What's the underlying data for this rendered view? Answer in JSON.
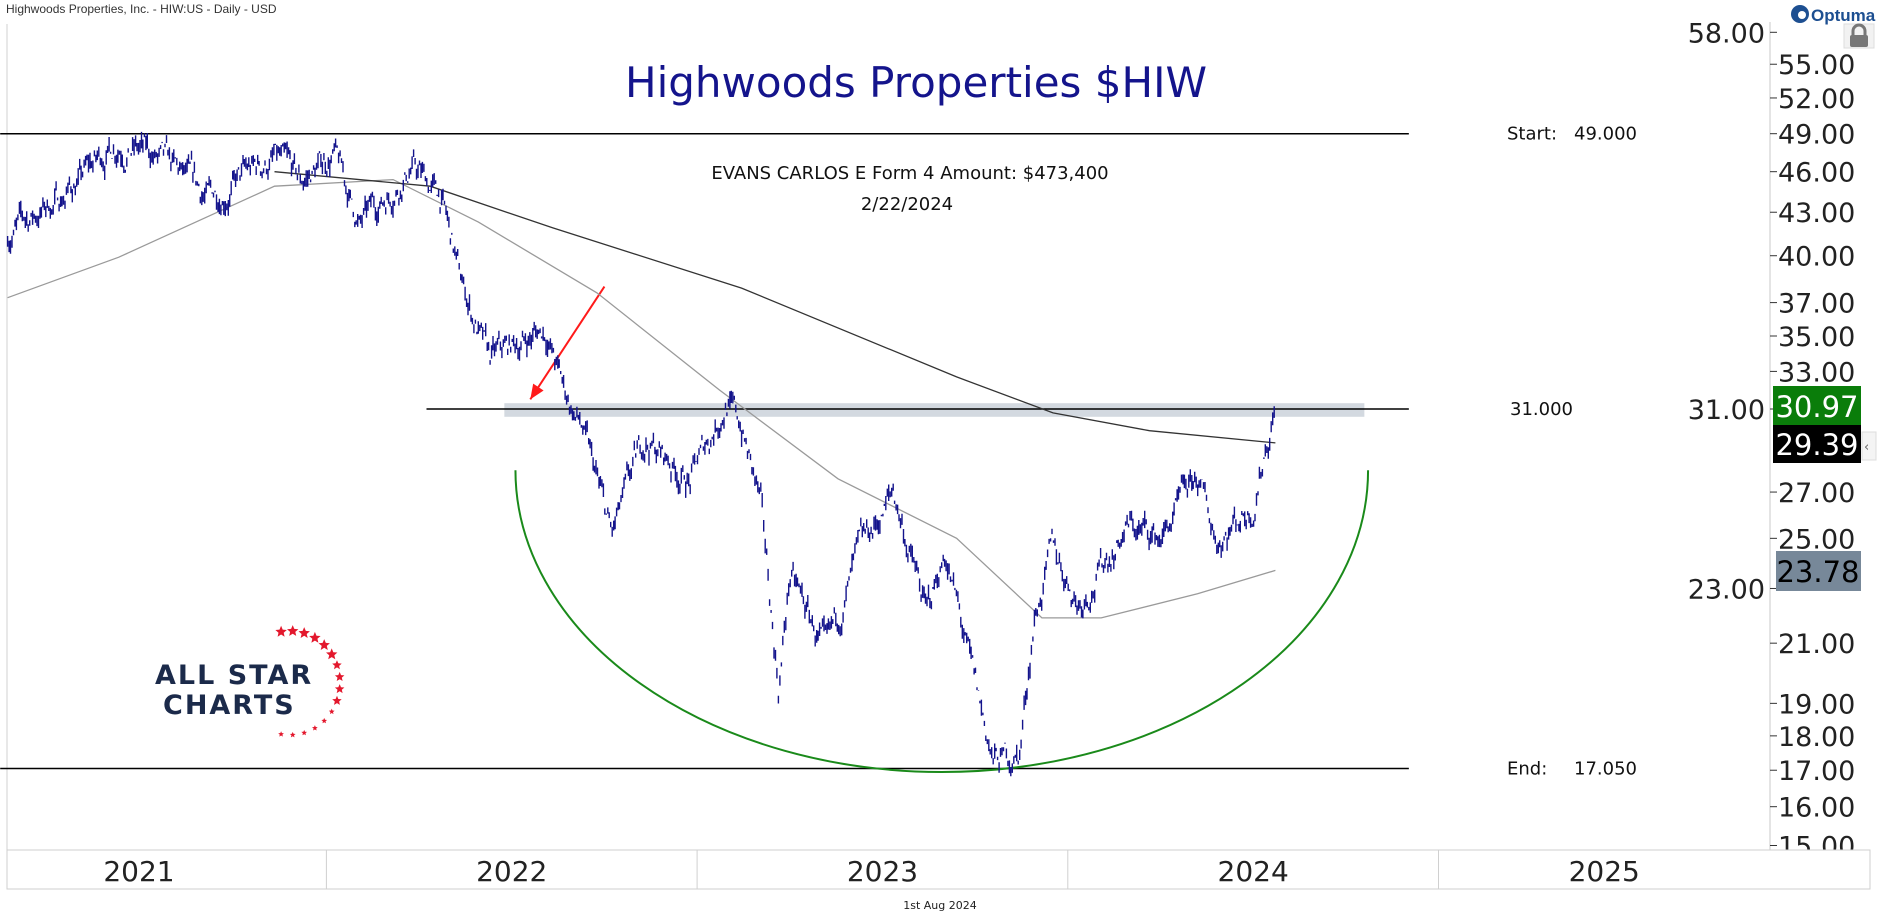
{
  "header": {
    "instrument": "Highwoods Properties, Inc. - HIW:US - Daily - USD",
    "brand": "Optuma"
  },
  "footer": {
    "date": "1st Aug 2024"
  },
  "logo": {
    "line1": "ALL STAR",
    "line2": "CHARTS"
  },
  "colors": {
    "price": "#14148c",
    "title": "#14148c",
    "ma_long": "#333333",
    "ma_short": "#9a9a9a",
    "arc": "#1a8a1a",
    "arrow": "#ff1a1a",
    "band": "#c8d0d8",
    "last_price": "#0a7d0a",
    "ma_long_label": "#000000",
    "ma_short_label": "#778899"
  },
  "chart_data": {
    "type": "line",
    "title": "Highwoods Properties $HIW",
    "xlabel": "",
    "ylabel": "",
    "scale": "log",
    "ylim": [
      15,
      58
    ],
    "xlim": [
      2021.0,
      2025.6
    ],
    "y_ticks": [
      "58.00",
      "55.00",
      "52.00",
      "49.00",
      "46.00",
      "43.00",
      "40.00",
      "37.00",
      "35.00",
      "33.00",
      "31.00",
      "27.00",
      "25.00",
      "23.00",
      "21.00",
      "19.00",
      "18.00",
      "17.00",
      "16.00",
      "15.00"
    ],
    "x_ticks": [
      {
        "label": "2021",
        "value": 2021.0
      },
      {
        "label": "2022",
        "value": 2022.0
      },
      {
        "label": "2023",
        "value": 2023.0
      },
      {
        "label": "2024",
        "value": 2024.0
      },
      {
        "label": "2025",
        "value": 2025.0
      }
    ],
    "series": [
      {
        "name": "HIW price",
        "type": "ohlc-approx",
        "points": [
          [
            2021.14,
            41.5
          ],
          [
            2021.28,
            44
          ],
          [
            2021.44,
            48.5
          ],
          [
            2021.54,
            47
          ],
          [
            2021.68,
            44
          ],
          [
            2021.86,
            47
          ],
          [
            2021.93,
            45
          ],
          [
            2022.02,
            47.5
          ],
          [
            2022.09,
            42
          ],
          [
            2022.23,
            46.5
          ],
          [
            2022.31,
            44
          ],
          [
            2022.36,
            38.5
          ],
          [
            2022.44,
            33.5
          ],
          [
            2022.59,
            35.5
          ],
          [
            2022.64,
            32
          ],
          [
            2022.69,
            30
          ],
          [
            2022.77,
            25
          ],
          [
            2022.86,
            29.5
          ],
          [
            2022.98,
            27.5
          ],
          [
            2023.08,
            31.5
          ],
          [
            2023.12,
            30
          ],
          [
            2023.17,
            26.5
          ],
          [
            2023.22,
            19.5
          ],
          [
            2023.25,
            23.5
          ],
          [
            2023.35,
            20.5
          ],
          [
            2023.43,
            24
          ],
          [
            2023.53,
            27
          ],
          [
            2023.62,
            22
          ],
          [
            2023.67,
            24.5
          ],
          [
            2023.74,
            20
          ],
          [
            2023.8,
            17.2
          ],
          [
            2023.87,
            17.5
          ],
          [
            2023.91,
            22
          ],
          [
            2023.96,
            24.5
          ],
          [
            2024.03,
            22.5
          ],
          [
            2024.16,
            25.5
          ],
          [
            2024.25,
            25
          ],
          [
            2024.35,
            27.5
          ],
          [
            2024.4,
            25
          ],
          [
            2024.5,
            26.5
          ],
          [
            2024.53,
            29
          ],
          [
            2024.56,
            31
          ]
        ]
      },
      {
        "name": "Long moving average",
        "points": [
          [
            2021.86,
            46.0
          ],
          [
            2022.28,
            44.9
          ],
          [
            2022.61,
            41.9
          ],
          [
            2023.12,
            37.9
          ],
          [
            2023.7,
            32.7
          ],
          [
            2023.96,
            30.8
          ],
          [
            2024.22,
            29.9
          ],
          [
            2024.56,
            29.3
          ]
        ]
      },
      {
        "name": "Short moving average",
        "points": [
          [
            2021.14,
            37.3
          ],
          [
            2021.44,
            39.9
          ],
          [
            2021.86,
            44.9
          ],
          [
            2022.18,
            45.4
          ],
          [
            2022.41,
            42.3
          ],
          [
            2022.73,
            37.6
          ],
          [
            2023.06,
            32.0
          ],
          [
            2023.38,
            27.6
          ],
          [
            2023.7,
            25.0
          ],
          [
            2023.93,
            21.9
          ],
          [
            2024.09,
            21.9
          ],
          [
            2024.35,
            22.8
          ],
          [
            2024.56,
            23.7
          ]
        ]
      }
    ],
    "price_labels": [
      {
        "name": "last-price",
        "value": "30.97"
      },
      {
        "name": "ma-long",
        "value": "29.39"
      },
      {
        "name": "ma-short",
        "value": "23.78"
      }
    ],
    "horizontal_lines": [
      {
        "name": "start",
        "value": 49.0,
        "prefix": "Start:",
        "label": "49.000",
        "x_from": 2021.12,
        "x_to": 2024.92
      },
      {
        "name": "resistance",
        "value": 31.0,
        "prefix": "",
        "label": "31.000",
        "x_from": 2022.27,
        "x_to": 2024.92
      },
      {
        "name": "end",
        "value": 17.05,
        "prefix": "End:",
        "label": "17.050",
        "x_from": 2021.12,
        "x_to": 2024.92
      }
    ],
    "band": {
      "value_low": 30.6,
      "value_high": 31.3,
      "x_from": 2022.48,
      "x_to": 2024.8
    },
    "annotation": {
      "line1": "EVANS CARLOS E   Form 4   Amount: $473,400",
      "line2": "2/22/2024"
    },
    "arrow": {
      "from": [
        2022.75,
        38.0
      ],
      "to": [
        2022.55,
        31.5
      ]
    },
    "arc": {
      "x_left": 2022.51,
      "x_right": 2024.81,
      "top_value": 28.0,
      "bottom_value": 16.95
    }
  }
}
